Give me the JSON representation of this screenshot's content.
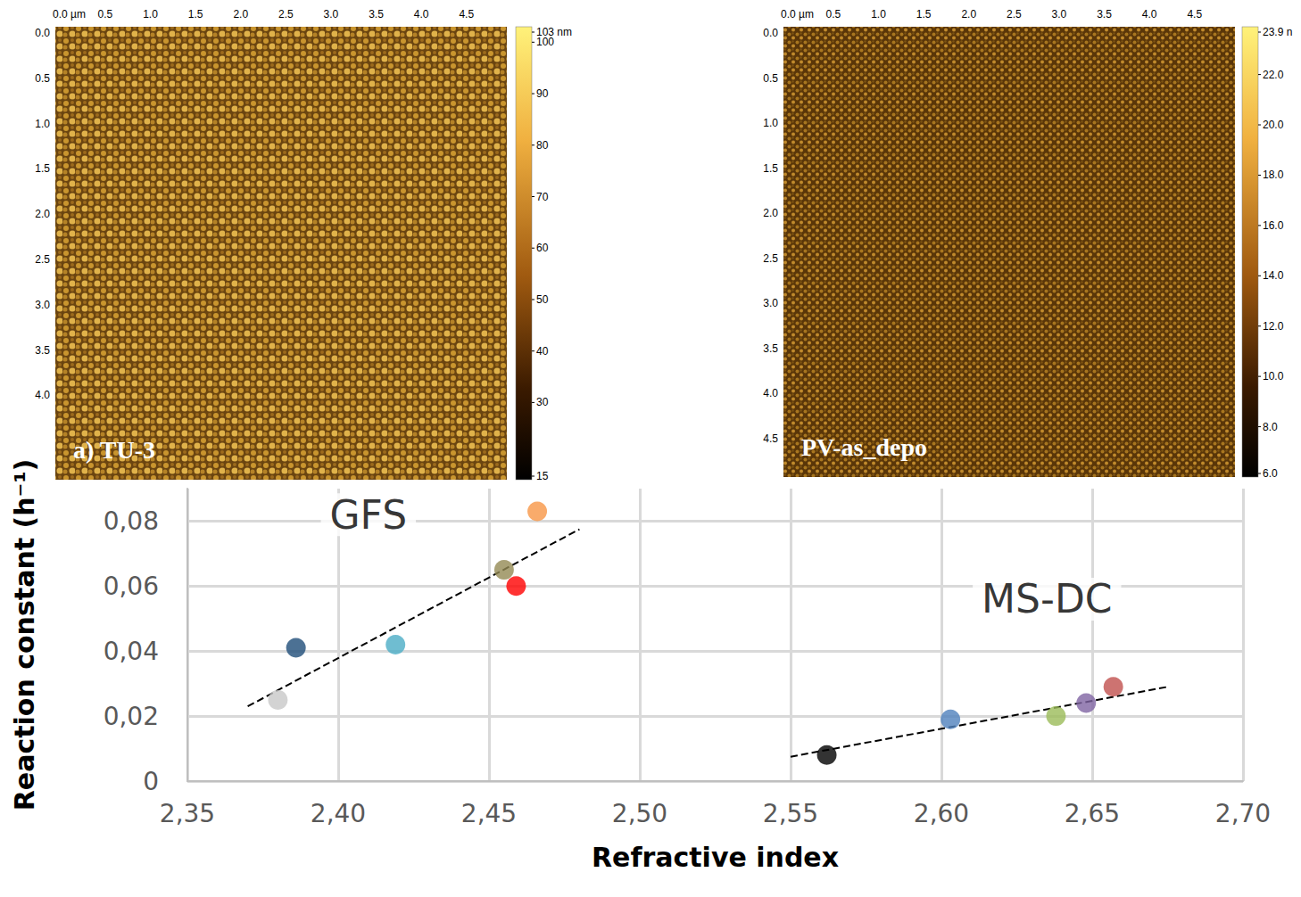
{
  "chart_data": {
    "type": "scatter",
    "x_label": "Refractive index",
    "y_label": "Reaction constant (h⁻¹)",
    "xlim": [
      2.35,
      2.7
    ],
    "xticks": [
      {
        "value": 2.35,
        "label": "2,35"
      },
      {
        "value": 2.4,
        "label": "2,40"
      },
      {
        "value": 2.45,
        "label": "2,45"
      },
      {
        "value": 2.5,
        "label": "2,50"
      },
      {
        "value": 2.55,
        "label": "2,55"
      },
      {
        "value": 2.6,
        "label": "2,60"
      },
      {
        "value": 2.65,
        "label": "2,65"
      },
      {
        "value": 2.7,
        "label": "2,70"
      }
    ],
    "ylim": [
      0,
      0.09
    ],
    "yticks": [
      0,
      {
        "value": 0.02,
        "label": "0,02"
      },
      {
        "value": 0.04,
        "label": "0,04"
      },
      {
        "value": 0.06,
        "label": "0,06"
      },
      {
        "value": 0.08,
        "label": "0,08"
      }
    ],
    "grid": true,
    "series": [
      {
        "type": "scatter",
        "marker": "circle",
        "x": [
          2.38,
          2.386,
          2.419,
          2.455,
          2.459,
          2.466
        ],
        "values": [
          0.025,
          0.041,
          0.042,
          0.065,
          0.06,
          0.083
        ],
        "colors": [
          "#c8c8c8",
          "#1f4e79",
          "#4bacc6",
          "#948a54",
          "#ff0000",
          "#f79646"
        ]
      },
      {
        "type": "line",
        "line_style": "dashed",
        "color": "#000000",
        "x": [
          2.37,
          2.48
        ],
        "values": [
          0.023,
          0.0775
        ]
      },
      {
        "type": "scatter",
        "marker": "circle",
        "x": [
          2.562,
          2.603,
          2.638,
          2.648,
          2.657
        ],
        "values": [
          0.008,
          0.019,
          0.02,
          0.024,
          0.029
        ],
        "colors": [
          "#000000",
          "#4f81bd",
          "#9bbb59",
          "#8064a2",
          "#c0504d"
        ]
      },
      {
        "type": "line",
        "line_style": "dashed",
        "color": "#000000",
        "x": [
          2.55,
          2.675
        ],
        "values": [
          0.0075,
          0.029
        ]
      }
    ],
    "annotations": [
      {
        "text": "GFS",
        "x": 2.41,
        "y": 0.082
      },
      {
        "text": "MS-DC",
        "x": 2.635,
        "y": 0.056
      }
    ]
  },
  "insets": [
    {
      "label": "a) TU-3",
      "x_ticks": [
        "0.0 µm",
        "0.5",
        "1.0",
        "1.5",
        "2.0",
        "2.5",
        "3.0",
        "3.5",
        "4.0",
        "4.5"
      ],
      "y_ticks": [
        "0.0",
        "0.5",
        "1.0",
        "1.5",
        "2.0",
        "2.5",
        "3.0",
        "3.5",
        "4.0"
      ],
      "colorbar": {
        "range": [
          15,
          103
        ],
        "ticks": [
          {
            "value": 103,
            "label": "103 nm"
          },
          100,
          90,
          80,
          70,
          60,
          50,
          40,
          30,
          15
        ]
      }
    },
    {
      "label": "PV-as_depo",
      "x_ticks": [
        "0.0 µm",
        "0.5",
        "1.0",
        "1.5",
        "2.0",
        "2.5",
        "3.0",
        "3.5",
        "4.0",
        "4.5"
      ],
      "y_ticks": [
        "0.0",
        "0.5",
        "1.0",
        "1.5",
        "2.0",
        "2.5",
        "3.0",
        "3.5",
        "4.0",
        "4.5"
      ],
      "colorbar": {
        "range": [
          6,
          23.9
        ],
        "ticks": [
          {
            "value": 23.9,
            "label": "23.9 n"
          },
          {
            "value": 22,
            "label": "22.0"
          },
          {
            "value": 20,
            "label": "20.0"
          },
          {
            "value": 18,
            "label": "18.0"
          },
          {
            "value": 16,
            "label": "16.0"
          },
          {
            "value": 14,
            "label": "14.0"
          },
          {
            "value": 12,
            "label": "12.0"
          },
          {
            "value": 10,
            "label": "10.0"
          },
          {
            "value": 8,
            "label": "8.0"
          },
          {
            "value": 6,
            "label": "6.0"
          }
        ]
      }
    }
  ]
}
